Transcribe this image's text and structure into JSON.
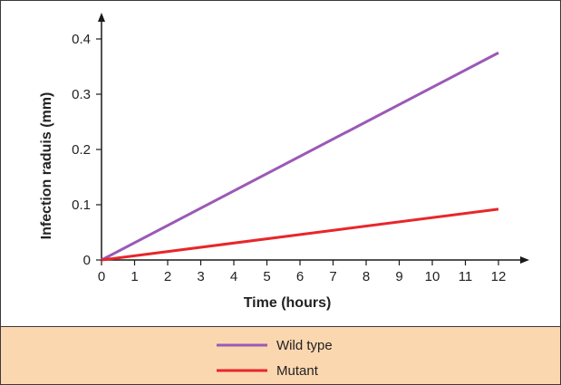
{
  "chart_data": {
    "type": "line",
    "title": "",
    "xlabel": "Time (hours)",
    "ylabel": "Infection raduis (mm)",
    "xlim": [
      0,
      12
    ],
    "ylim": [
      0,
      0.4
    ],
    "xticks": [
      "0",
      "1",
      "2",
      "3",
      "4",
      "5",
      "6",
      "7",
      "8",
      "9",
      "10",
      "11",
      "12"
    ],
    "yticks": [
      "0",
      "0.1",
      "0.2",
      "0.3",
      "0.4"
    ],
    "grid": false,
    "legend_position": "bottom",
    "series": [
      {
        "name": "Wild type",
        "color": "#9b59b6",
        "x": [
          0,
          12
        ],
        "y": [
          0,
          0.375
        ]
      },
      {
        "name": "Mutant",
        "color": "#e8262a",
        "x": [
          0,
          12
        ],
        "y": [
          0,
          0.092
        ]
      }
    ]
  },
  "colors": {
    "legend_background": "#fbd7b0",
    "axis": "#1a1a1a"
  }
}
